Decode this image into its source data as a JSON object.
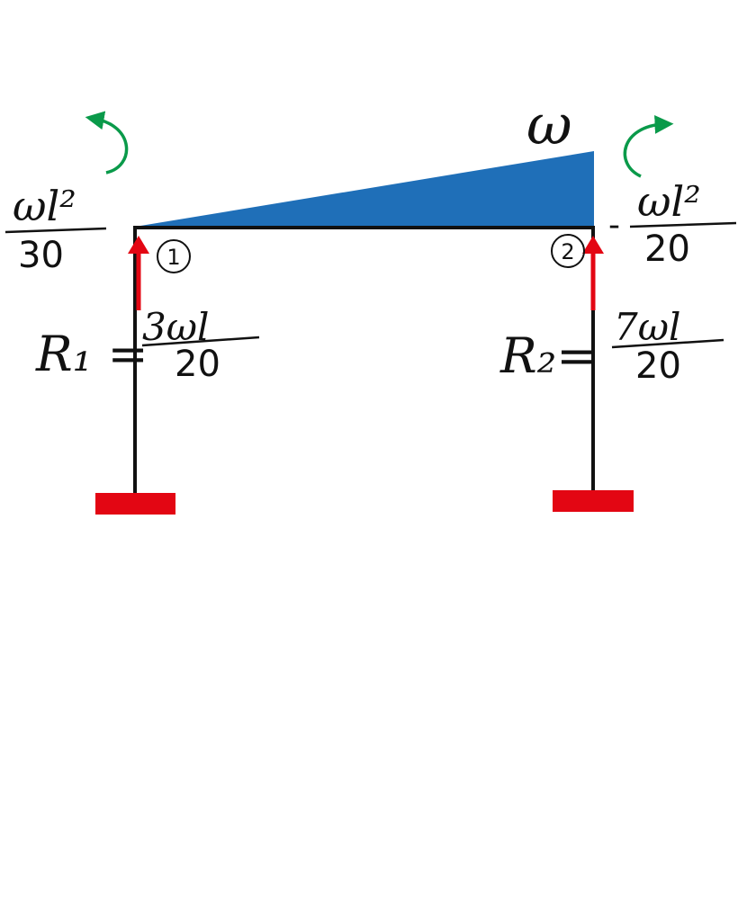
{
  "load": {
    "symbol": "ω",
    "type": "triangular distributed load",
    "fill_color": "#1f6fb8"
  },
  "nodes": [
    {
      "id": "1",
      "label": "1"
    },
    {
      "id": "2",
      "label": "2"
    }
  ],
  "moments": {
    "left": {
      "numerator": "ωl²",
      "denominator": "30",
      "sign": ""
    },
    "right": {
      "numerator": "ωl²",
      "denominator": "20",
      "sign": "-"
    }
  },
  "reactions": {
    "left": {
      "name": "R₁ =",
      "numerator": "3ωl",
      "denominator": "20"
    },
    "right": {
      "name": "R₂=",
      "numerator": "7ωl",
      "denominator": "20"
    }
  },
  "colors": {
    "frame": "#111111",
    "support": "#e30613",
    "reaction_arrow": "#e30613",
    "moment_arrow": "#0a9a4a",
    "load": "#1f6fb8"
  },
  "icons": {
    "left_moment": "counterclockwise-curved-arrow-icon",
    "right_moment": "clockwise-curved-arrow-icon",
    "reaction": "up-arrow-icon",
    "support": "fixed-support-icon"
  }
}
